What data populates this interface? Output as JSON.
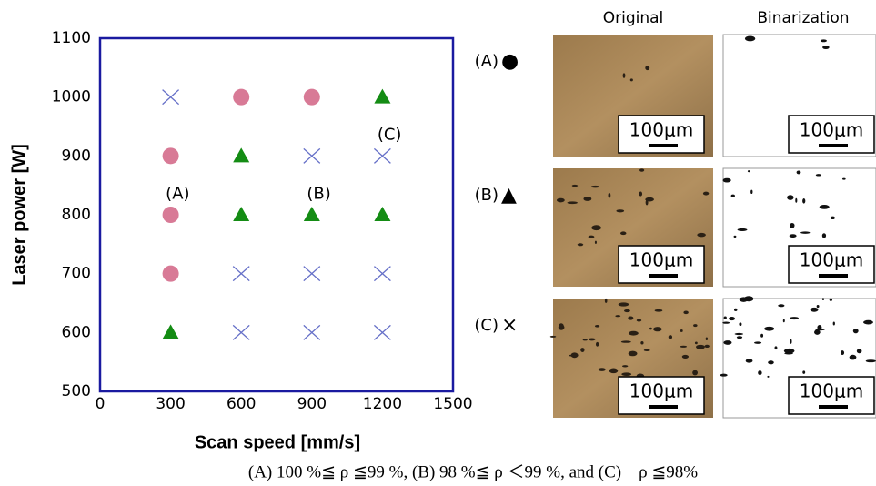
{
  "chart_data": {
    "type": "scatter",
    "xlabel": "Scan speed [mm/s]",
    "ylabel": "Laser power [W]",
    "xlim": [
      0,
      1500
    ],
    "xticks": [
      0,
      300,
      600,
      900,
      1200,
      1500
    ],
    "ylim": [
      500,
      1100
    ],
    "yticks": [
      500,
      600,
      700,
      800,
      900,
      1000,
      1100
    ],
    "grid": true,
    "series": [
      {
        "marker": "circle",
        "color": "#d87a96",
        "x": [
          300,
          300,
          300,
          600,
          900
        ],
        "y": [
          900,
          800,
          700,
          1000,
          1000
        ]
      },
      {
        "marker": "triangle",
        "color": "#148c14",
        "x": [
          300,
          600,
          600,
          900,
          1200,
          1200
        ],
        "y": [
          600,
          900,
          800,
          800,
          800,
          1000
        ]
      },
      {
        "marker": "cross",
        "color": "#6670c8",
        "x": [
          300,
          600,
          600,
          900,
          900,
          900,
          1200,
          1200,
          1200
        ],
        "y": [
          1000,
          700,
          600,
          900,
          700,
          600,
          900,
          700,
          600
        ]
      }
    ],
    "annotations": [
      {
        "text": "(A)",
        "x": 330,
        "y": 835
      },
      {
        "text": "(B)",
        "x": 930,
        "y": 835
      },
      {
        "text": "(C)",
        "x": 1230,
        "y": 935
      }
    ]
  },
  "panels": {
    "columns": [
      "Original",
      "Binarization"
    ],
    "rows": [
      {
        "label": "(A)",
        "symbol": "●",
        "scale_bars": [
          "100μm",
          "100μm"
        ]
      },
      {
        "label": "(B)",
        "symbol": "▲",
        "scale_bars": [
          "100μm",
          "100μm"
        ]
      },
      {
        "label": "(C)",
        "symbol": "×",
        "scale_bars": [
          "100μm",
          "100μm"
        ]
      }
    ]
  },
  "caption": "(A) 100 %≦ ρ ≦99 %, (B) 98 %≦ ρ ＜99 %, and (C)　ρ ≦98%"
}
